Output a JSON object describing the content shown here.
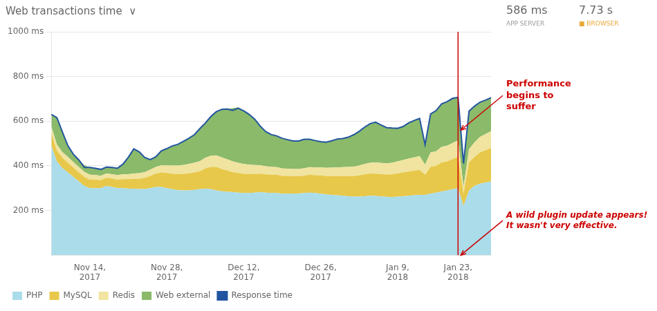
{
  "chart_data": {
    "type": "area",
    "title": "Web transactions time  ∨",
    "categories": [
      null,
      null,
      null,
      null,
      null,
      null,
      null,
      "Nov 14,\n2017",
      null,
      null,
      null,
      null,
      null,
      null,
      null,
      null,
      null,
      null,
      null,
      null,
      null,
      "Nov 28,\n2017",
      null,
      null,
      null,
      null,
      null,
      null,
      null,
      null,
      null,
      null,
      null,
      null,
      null,
      "Dec 12,\n2017",
      null,
      null,
      null,
      null,
      null,
      null,
      null,
      null,
      null,
      null,
      null,
      null,
      null,
      "Dec 26,\n2017",
      null,
      null,
      null,
      null,
      null,
      null,
      null,
      null,
      null,
      null,
      null,
      null,
      null,
      "Jan 9,\n2018",
      null,
      null,
      null,
      null,
      null,
      null,
      null,
      null,
      null,
      null,
      "Jan 23,\n2018",
      null,
      null,
      null,
      null,
      null,
      null
    ],
    "series": [
      {
        "name": "PHP",
        "color": "#aadcea",
        "values": [
          490,
          420,
          390,
          370,
          350,
          330,
          310,
          300,
          300,
          300,
          310,
          305,
          300,
          300,
          298,
          298,
          296,
          296,
          300,
          305,
          305,
          300,
          295,
          291,
          290,
          290,
          292,
          295,
          298,
          295,
          290,
          286,
          284,
          282,
          280,
          278,
          278,
          280,
          282,
          280,
          278,
          278,
          275,
          275,
          276,
          276,
          278,
          280,
          278,
          275,
          272,
          270,
          268,
          266,
          264,
          262,
          262,
          264,
          266,
          265,
          263,
          261,
          260,
          262,
          264,
          266,
          268,
          270,
          270,
          275,
          280,
          285,
          290,
          295,
          300,
          220,
          290,
          310,
          320,
          325,
          330
        ]
      },
      {
        "name": "MySQL",
        "color": "#e8c84a",
        "values": [
          55,
          48,
          46,
          44,
          42,
          40,
          40,
          38,
          38,
          36,
          36,
          38,
          38,
          40,
          42,
          44,
          46,
          50,
          55,
          60,
          65,
          68,
          70,
          72,
          74,
          76,
          78,
          80,
          90,
          100,
          105,
          100,
          95,
          90,
          88,
          86,
          85,
          84,
          83,
          82,
          82,
          82,
          80,
          80,
          78,
          78,
          78,
          80,
          80,
          82,
          82,
          84,
          86,
          88,
          90,
          92,
          95,
          98,
          100,
          100,
          100,
          100,
          102,
          104,
          106,
          108,
          110,
          112,
          90,
          120,
          120,
          130,
          130,
          135,
          140,
          55,
          125,
          130,
          140,
          145,
          150
        ]
      },
      {
        "name": "Redis",
        "color": "#f0e4a0",
        "values": [
          30,
          28,
          26,
          26,
          25,
          24,
          23,
          22,
          21,
          20,
          20,
          20,
          21,
          22,
          23,
          24,
          25,
          26,
          28,
          30,
          32,
          34,
          36,
          38,
          40,
          42,
          44,
          46,
          48,
          50,
          52,
          52,
          50,
          48,
          46,
          44,
          42,
          40,
          38,
          36,
          35,
          34,
          33,
          32,
          32,
          32,
          33,
          34,
          35,
          36,
          37,
          38,
          39,
          40,
          41,
          42,
          44,
          46,
          48,
          50,
          50,
          50,
          52,
          54,
          56,
          58,
          60,
          62,
          45,
          65,
          65,
          70,
          70,
          72,
          74,
          30,
          60,
          65,
          70,
          72,
          75
        ]
      },
      {
        "name": "Web external",
        "color": "#8aba6a",
        "values": [
          55,
          120,
          90,
          50,
          35,
          32,
          30,
          33,
          30,
          28,
          28,
          30,
          30,
          45,
          75,
          110,
          95,
          65,
          45,
          45,
          65,
          75,
          88,
          95,
          105,
          115,
          125,
          145,
          155,
          175,
          195,
          215,
          225,
          238,
          248,
          238,
          225,
          205,
          175,
          155,
          145,
          140,
          135,
          130,
          125,
          125,
          130,
          125,
          120,
          115,
          115,
          118,
          125,
          128,
          133,
          143,
          155,
          165,
          175,
          180,
          170,
          160,
          155,
          148,
          150,
          160,
          165,
          168,
          90,
          172,
          182,
          192,
          197,
          200,
          192,
          105,
          170,
          162,
          155,
          152,
          150
        ]
      },
      {
        "name": "Response time",
        "color": "#2255a0",
        "type": "line",
        "values": [
          630,
          616,
          552,
          490,
          452,
          426,
          393,
          393,
          389,
          384,
          394,
          393,
          389,
          407,
          438,
          476,
          462,
          437,
          428,
          440,
          467,
          477,
          489,
          496,
          509,
          523,
          539,
          566,
          591,
          620,
          642,
          653,
          654,
          648,
          658,
          646,
          630,
          609,
          578,
          553,
          540,
          534,
          523,
          517,
          511,
          511,
          519,
          519,
          513,
          508,
          506,
          512,
          520,
          522,
          528,
          539,
          554,
          573,
          589,
          595,
          583,
          571,
          569,
          568,
          576,
          592,
          603,
          612,
          495,
          632,
          647,
          677,
          687,
          702,
          706,
          410,
          645,
          667,
          685,
          694,
          705
        ]
      }
    ],
    "stacked": true,
    "ylim": [
      0,
      1000
    ],
    "yticks": [
      {
        "value": 200,
        "label": "200 ms"
      },
      {
        "value": 400,
        "label": "400 ms"
      },
      {
        "value": 600,
        "label": "600 ms"
      },
      {
        "value": 800,
        "label": "800 ms"
      },
      {
        "value": 1000,
        "label": "1000 ms"
      }
    ],
    "grid": true,
    "legend": "bottom",
    "stats": [
      {
        "text": "586 ms",
        "label": "APP SERVER"
      },
      {
        "text": "7.73 s",
        "label": "■ BROWSER",
        "color": "#e8a838"
      }
    ],
    "annotations": [
      {
        "text": "Performance\nbegins to\nsuffer",
        "x": 74,
        "y": 560,
        "color": "#cc0000"
      },
      {
        "text": "A wild plugin update appears!\nIt wasn't very effective.",
        "x": 74,
        "y": 0,
        "color": "#cc0000"
      }
    ],
    "vertical_line": {
      "x": 74,
      "color": "#cc0000"
    }
  }
}
